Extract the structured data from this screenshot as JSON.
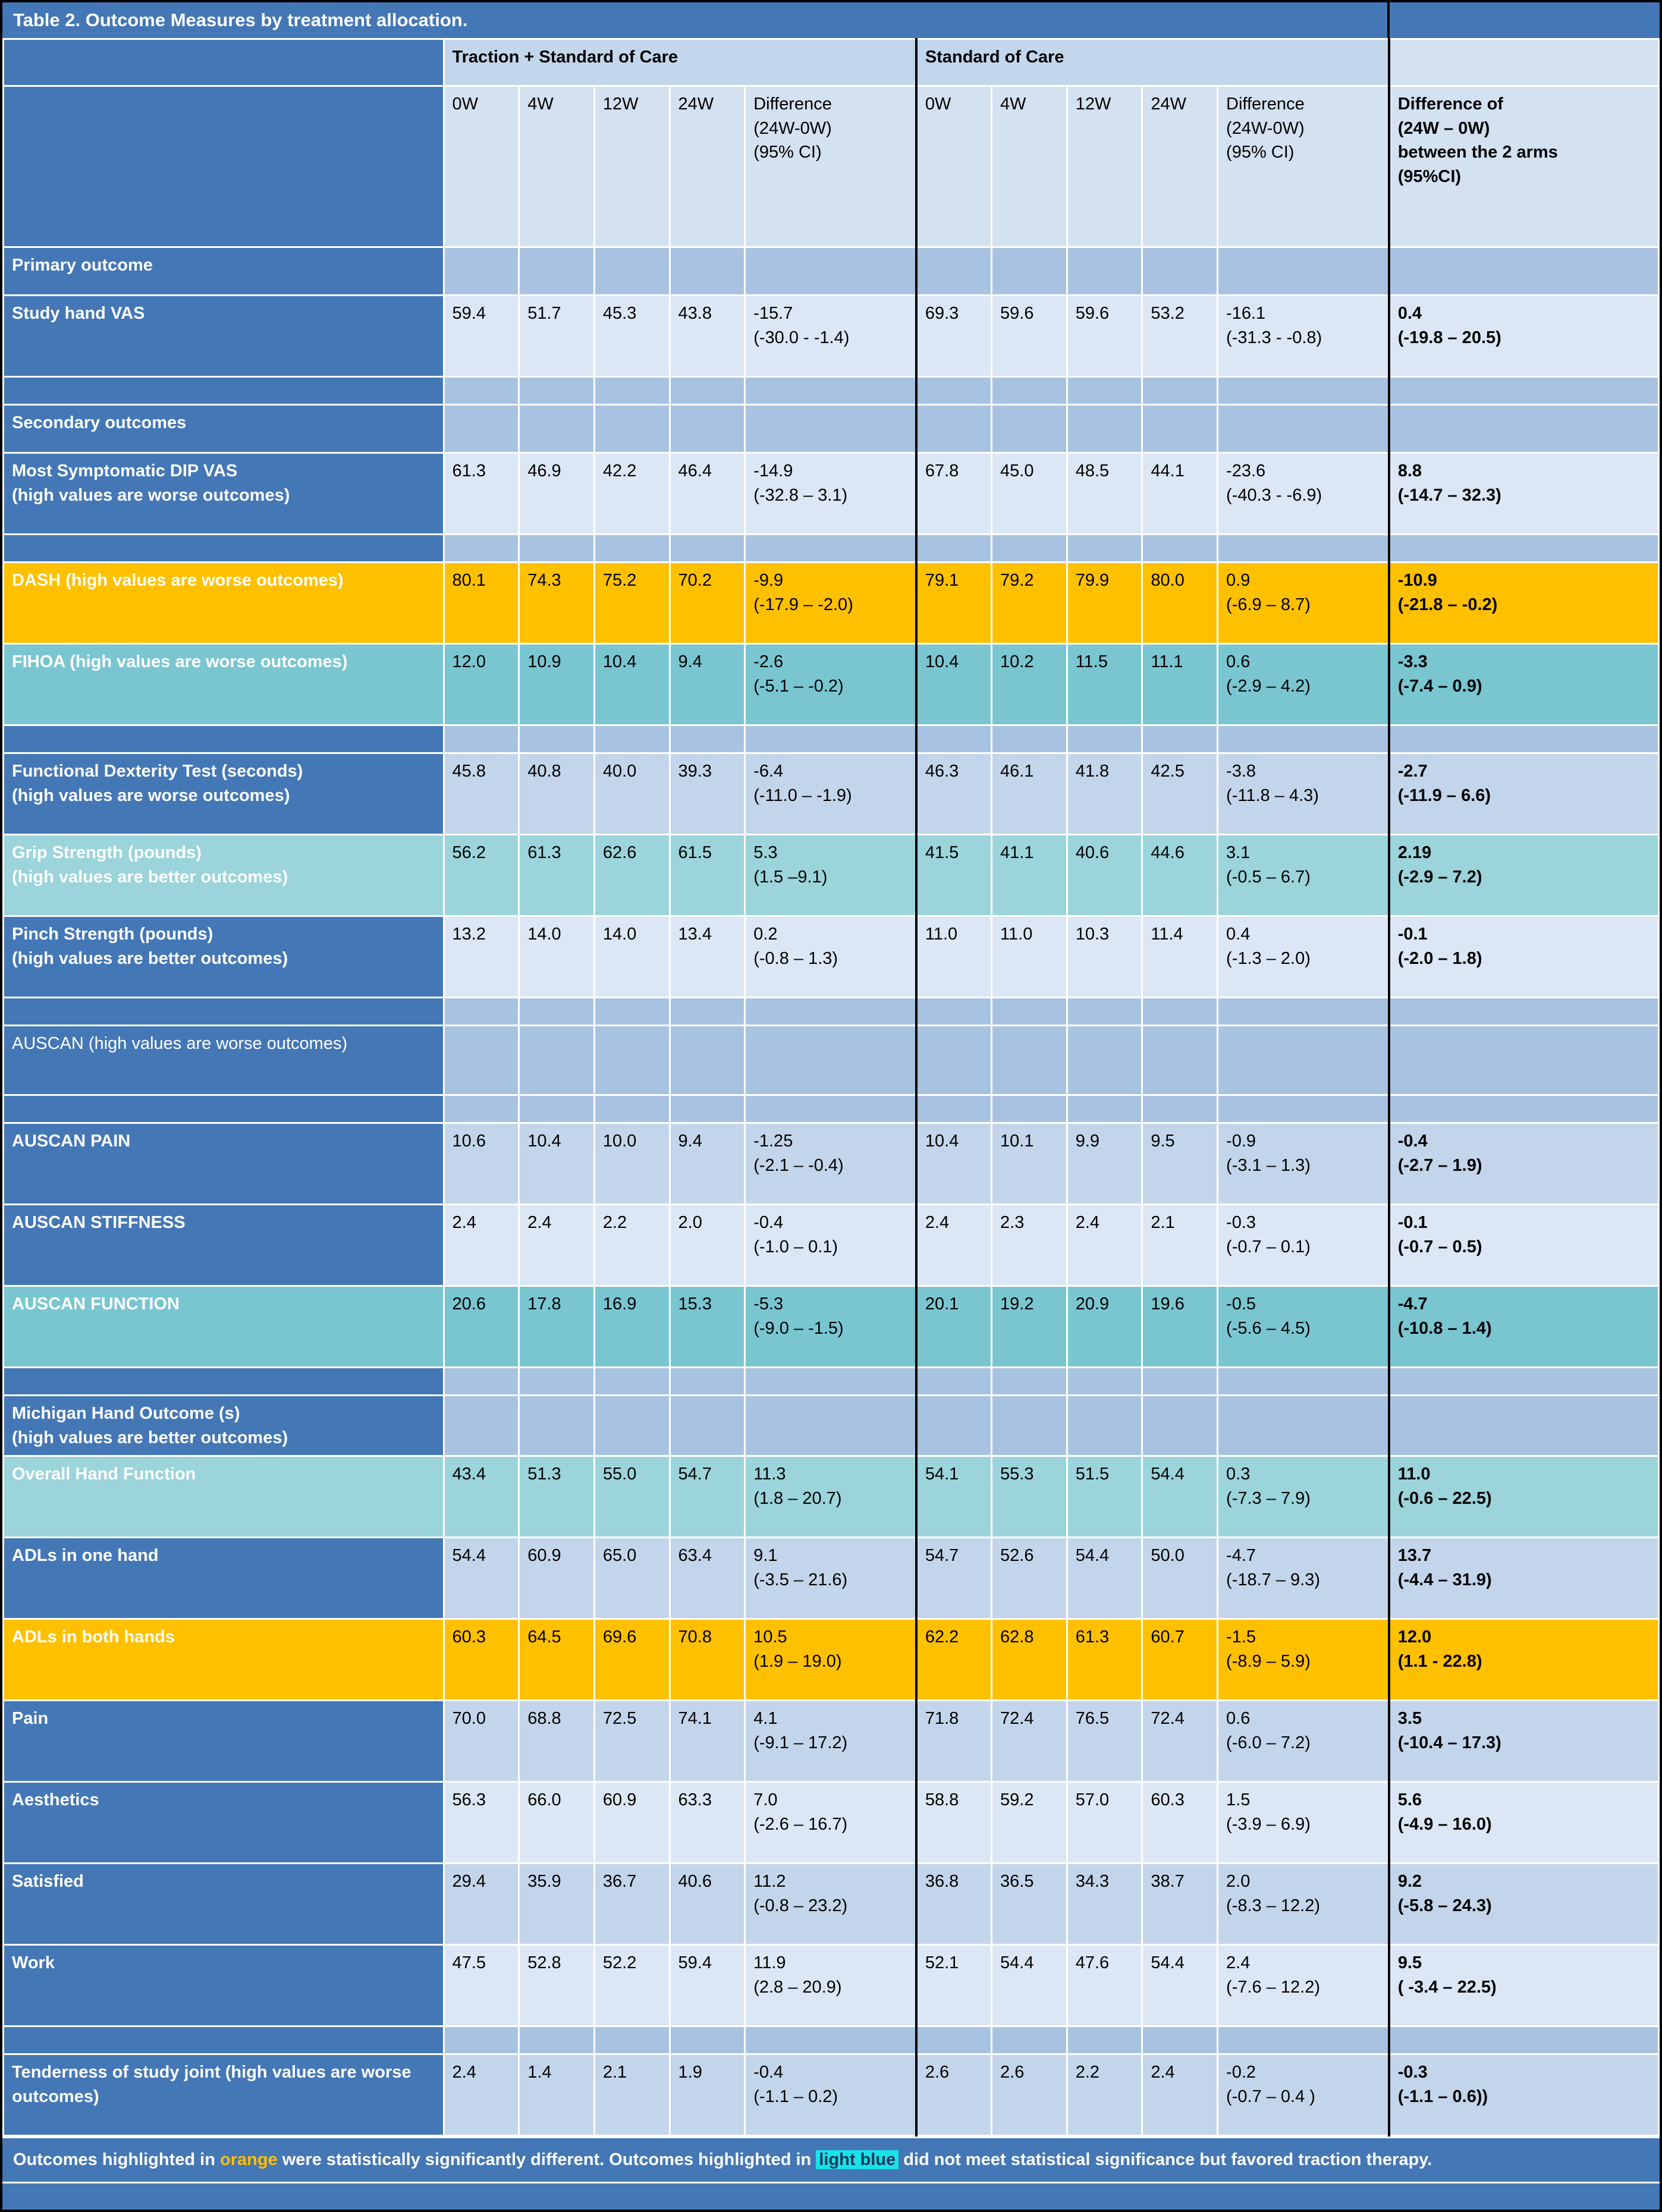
{
  "title": "Table 2. Outcome Measures by treatment allocation.",
  "colors": {
    "blue": "#4477b5",
    "group_bg": "#c3d7ec",
    "colh_bg": "#d3e1f1",
    "row_light": "#dbe7f4",
    "row_mid": "#c3d5ea",
    "spacer_bg": "#a8c3e1",
    "orange": "#ffc000",
    "teal": "#79c6d1",
    "teal_light": "#9bd4db",
    "cyan": "#19e2e8"
  },
  "header": {
    "group1": "Traction + Standard of Care",
    "group2": "Standard of Care",
    "subcols": [
      "0W",
      "4W",
      "12W",
      "24W"
    ],
    "diff_label": [
      "Difference",
      "(24W-0W)",
      "(95% CI)"
    ],
    "final_label": [
      "Difference of",
      "(24W – 0W)",
      "between the 2 arms",
      "(95%CI)"
    ]
  },
  "rows": [
    {
      "kind": "section",
      "bold": true,
      "lines": [
        "Primary outcome"
      ]
    },
    {
      "kind": "data",
      "shade": "light",
      "highlight": null,
      "label": [
        "Study hand VAS"
      ],
      "cells": [
        "59.4",
        "51.7",
        "45.3",
        "43.8"
      ],
      "diff": [
        "-15.7",
        "(-30.0 - -1.4)"
      ],
      "cells2": [
        "69.3",
        "59.6",
        "59.6",
        "53.2"
      ],
      "diff2": [
        "-16.1",
        "(-31.3 - -0.8)"
      ],
      "final": [
        "0.4",
        "(-19.8 – 20.5)"
      ]
    },
    {
      "kind": "spacer"
    },
    {
      "kind": "section",
      "bold": true,
      "lines": [
        "Secondary outcomes"
      ]
    },
    {
      "kind": "data",
      "shade": "light",
      "highlight": null,
      "label": [
        "Most Symptomatic DIP VAS",
        "(high values are worse outcomes)"
      ],
      "cells": [
        "61.3",
        "46.9",
        "42.2",
        "46.4"
      ],
      "diff": [
        "-14.9",
        "(-32.8 – 3.1)"
      ],
      "cells2": [
        "67.8",
        "45.0",
        "48.5",
        "44.1"
      ],
      "diff2": [
        "-23.6",
        "(-40.3 -  -6.9)"
      ],
      "final": [
        "8.8",
        "(-14.7 – 32.3)"
      ]
    },
    {
      "kind": "spacer"
    },
    {
      "kind": "data",
      "shade": "light",
      "highlight": "orange",
      "label": [
        "DASH  (high values are worse outcomes)"
      ],
      "cells": [
        "80.1",
        "74.3",
        "75.2",
        "70.2"
      ],
      "diff": [
        "-9.9",
        "(-17.9 – -2.0)"
      ],
      "cells2": [
        "79.1",
        "79.2",
        "79.9",
        "80.0"
      ],
      "diff2": [
        "0.9",
        "(-6.9 – 8.7)"
      ],
      "final": [
        "-10.9",
        "(-21.8 – -0.2)"
      ]
    },
    {
      "kind": "data",
      "shade": "light",
      "highlight": "teal",
      "label": [
        "FIHOA  (high values are worse outcomes)"
      ],
      "cells": [
        "12.0",
        "10.9",
        "10.4",
        "9.4"
      ],
      "diff": [
        "-2.6",
        "(-5.1 – -0.2)"
      ],
      "cells2": [
        "10.4",
        "10.2",
        "11.5",
        "11.1"
      ],
      "diff2": [
        "0.6",
        "(-2.9 – 4.2)"
      ],
      "final": [
        "-3.3",
        "(-7.4 – 0.9)"
      ]
    },
    {
      "kind": "spacer"
    },
    {
      "kind": "data",
      "shade": "mid",
      "highlight": null,
      "label": [
        "Functional Dexterity Test  (seconds)",
        "(high values are worse outcomes)"
      ],
      "cells": [
        "45.8",
        "40.8",
        "40.0",
        "39.3"
      ],
      "diff": [
        "-6.4",
        "(-11.0 – -1.9)"
      ],
      "cells2": [
        "46.3",
        "46.1",
        "41.8",
        "42.5"
      ],
      "diff2": [
        "-3.8",
        "(-11.8 – 4.3)"
      ],
      "final": [
        "-2.7",
        "(-11.9 – 6.6)"
      ]
    },
    {
      "kind": "data",
      "shade": "light",
      "highlight": "teal-light",
      "label": [
        "Grip Strength (pounds)",
        "(high values are better outcomes)"
      ],
      "cells": [
        "56.2",
        "61.3",
        "62.6",
        "61.5"
      ],
      "diff": [
        "5.3",
        "(1.5 –9.1)"
      ],
      "cells2": [
        "41.5",
        "41.1",
        "40.6",
        "44.6"
      ],
      "diff2": [
        "3.1",
        "(-0.5 – 6.7)"
      ],
      "final": [
        "2.19",
        "(-2.9 – 7.2)"
      ]
    },
    {
      "kind": "data",
      "shade": "light",
      "highlight": null,
      "label": [
        "Pinch Strength (pounds)",
        "(high values are better outcomes)"
      ],
      "cells": [
        "13.2",
        "14.0",
        "14.0",
        "13.4"
      ],
      "diff": [
        "0.2",
        "(-0.8 – 1.3)"
      ],
      "cells2": [
        "11.0",
        "11.0",
        "10.3",
        "11.4"
      ],
      "diff2": [
        "0.4",
        "(-1.3 – 2.0)"
      ],
      "final": [
        "-0.1",
        "(-2.0 – 1.8)"
      ]
    },
    {
      "kind": "spacer"
    },
    {
      "kind": "section",
      "bold": false,
      "tall": true,
      "lines": [
        "AUSCAN (high values are worse outcomes)"
      ]
    },
    {
      "kind": "spacer"
    },
    {
      "kind": "data",
      "shade": "mid",
      "highlight": null,
      "label": [
        "AUSCAN PAIN"
      ],
      "cells": [
        "10.6",
        "10.4",
        "10.0",
        "9.4"
      ],
      "diff": [
        "-1.25",
        "(-2.1 – -0.4)"
      ],
      "cells2": [
        "10.4",
        "10.1",
        "9.9",
        "9.5"
      ],
      "diff2": [
        "-0.9",
        "(-3.1 – 1.3)"
      ],
      "final": [
        "-0.4",
        "(-2.7 – 1.9)"
      ]
    },
    {
      "kind": "data",
      "shade": "light",
      "highlight": null,
      "label": [
        "AUSCAN STIFFNESS"
      ],
      "cells": [
        "2.4",
        "2.4",
        "2.2",
        "2.0"
      ],
      "diff": [
        "-0.4",
        "(-1.0 – 0.1)"
      ],
      "cells2": [
        "2.4",
        "2.3",
        "2.4",
        "2.1"
      ],
      "diff2": [
        "-0.3",
        "(-0.7 – 0.1)"
      ],
      "final": [
        "-0.1",
        "(-0.7 – 0.5)"
      ]
    },
    {
      "kind": "data",
      "shade": "light",
      "highlight": "teal",
      "label": [
        "AUSCAN FUNCTION"
      ],
      "cells": [
        "20.6",
        "17.8",
        "16.9",
        "15.3"
      ],
      "diff": [
        "-5.3",
        "(-9.0 – -1.5)"
      ],
      "cells2": [
        "20.1",
        "19.2",
        "20.9",
        "19.6"
      ],
      "diff2": [
        "-0.5",
        "(-5.6 – 4.5)"
      ],
      "final": [
        "-4.7",
        "(-10.8 – 1.4)"
      ]
    },
    {
      "kind": "spacer"
    },
    {
      "kind": "section",
      "bold": true,
      "lines": [
        "Michigan Hand Outcome (s)",
        "(high values are better outcomes)"
      ]
    },
    {
      "kind": "data",
      "shade": "light",
      "highlight": "teal-light",
      "label": [
        "Overall Hand Function"
      ],
      "cells": [
        "43.4",
        "51.3",
        "55.0",
        "54.7"
      ],
      "diff": [
        "11.3",
        "(1.8 – 20.7)"
      ],
      "cells2": [
        "54.1",
        "55.3",
        "51.5",
        "54.4"
      ],
      "diff2": [
        "0.3",
        "(-7.3 – 7.9)"
      ],
      "final": [
        "11.0",
        "(-0.6 – 22.5)"
      ]
    },
    {
      "kind": "data",
      "shade": "mid",
      "highlight": null,
      "label": [
        "ADLs in one hand"
      ],
      "cells": [
        "54.4",
        "60.9",
        "65.0",
        "63.4"
      ],
      "diff": [
        "9.1",
        "(-3.5 – 21.6)"
      ],
      "cells2": [
        "54.7",
        "52.6",
        "54.4",
        "50.0"
      ],
      "diff2": [
        "-4.7",
        "(-18.7 – 9.3)"
      ],
      "final": [
        "13.7",
        "(-4.4 – 31.9)"
      ]
    },
    {
      "kind": "data",
      "shade": "light",
      "highlight": "orange",
      "label": [
        "ADLs in both hands"
      ],
      "cells": [
        "60.3",
        "64.5",
        "69.6",
        "70.8"
      ],
      "diff": [
        "10.5",
        "(1.9 – 19.0)"
      ],
      "cells2": [
        "62.2",
        "62.8",
        "61.3",
        "60.7"
      ],
      "diff2": [
        "-1.5",
        "(-8.9 – 5.9)"
      ],
      "final": [
        "12.0",
        "(1.1 - 22.8)"
      ]
    },
    {
      "kind": "data",
      "shade": "mid",
      "highlight": null,
      "label": [
        "Pain"
      ],
      "cells": [
        "70.0",
        "68.8",
        "72.5",
        "74.1"
      ],
      "diff": [
        "4.1",
        "(-9.1 – 17.2)"
      ],
      "cells2": [
        "71.8",
        "72.4",
        "76.5",
        "72.4"
      ],
      "diff2": [
        "0.6",
        "(-6.0 – 7.2)"
      ],
      "final": [
        "3.5",
        "(-10.4 – 17.3)"
      ]
    },
    {
      "kind": "data",
      "shade": "light",
      "highlight": null,
      "label": [
        "Aesthetics"
      ],
      "cells": [
        "56.3",
        "66.0",
        "60.9",
        "63.3"
      ],
      "diff": [
        "7.0",
        "(-2.6 – 16.7)"
      ],
      "cells2": [
        "58.8",
        "59.2",
        "57.0",
        "60.3"
      ],
      "diff2": [
        "1.5",
        "(-3.9 – 6.9)"
      ],
      "final": [
        "5.6",
        "(-4.9 – 16.0)"
      ]
    },
    {
      "kind": "data",
      "shade": "mid",
      "highlight": null,
      "label": [
        "Satisfied"
      ],
      "cells": [
        "29.4",
        "35.9",
        "36.7",
        "40.6"
      ],
      "diff": [
        "11.2",
        "(-0.8 – 23.2)"
      ],
      "cells2": [
        "36.8",
        "36.5",
        "34.3",
        "38.7"
      ],
      "diff2": [
        "2.0",
        "(-8.3 – 12.2)"
      ],
      "final": [
        "9.2",
        "(-5.8 – 24.3)"
      ]
    },
    {
      "kind": "data",
      "shade": "light",
      "highlight": null,
      "label": [
        "Work"
      ],
      "cells": [
        "47.5",
        "52.8",
        "52.2",
        "59.4"
      ],
      "diff": [
        "11.9",
        "(2.8 – 20.9)"
      ],
      "cells2": [
        "52.1",
        "54.4",
        "47.6",
        "54.4"
      ],
      "diff2": [
        "2.4",
        "(-7.6 – 12.2)"
      ],
      "final": [
        "9.5",
        "( -3.4 – 22.5)"
      ]
    },
    {
      "kind": "spacer"
    },
    {
      "kind": "data",
      "shade": "mid",
      "highlight": null,
      "label": [
        "Tenderness of study joint (high values are worse outcomes)"
      ],
      "cells": [
        "2.4",
        "1.4",
        "2.1",
        "1.9"
      ],
      "diff": [
        "-0.4",
        "(-1.1 – 0.2)"
      ],
      "cells2": [
        "2.6",
        "2.6",
        "2.2",
        "2.4"
      ],
      "diff2": [
        "-0.2",
        "(-0.7 – 0.4 )"
      ],
      "final": [
        "-0.3",
        "(-1.1 – 0.6))"
      ]
    }
  ],
  "footer": {
    "parts": [
      {
        "text": "Outcomes highlighted in ",
        "style": "normal"
      },
      {
        "text": "orange",
        "style": "orange"
      },
      {
        "text": " were statistically significantly different.  Outcomes highlighted in ",
        "style": "normal"
      },
      {
        "text": "light blue",
        "style": "cyan"
      },
      {
        "text": " did not meet statistical significance but favored traction therapy.",
        "style": "normal"
      }
    ]
  }
}
